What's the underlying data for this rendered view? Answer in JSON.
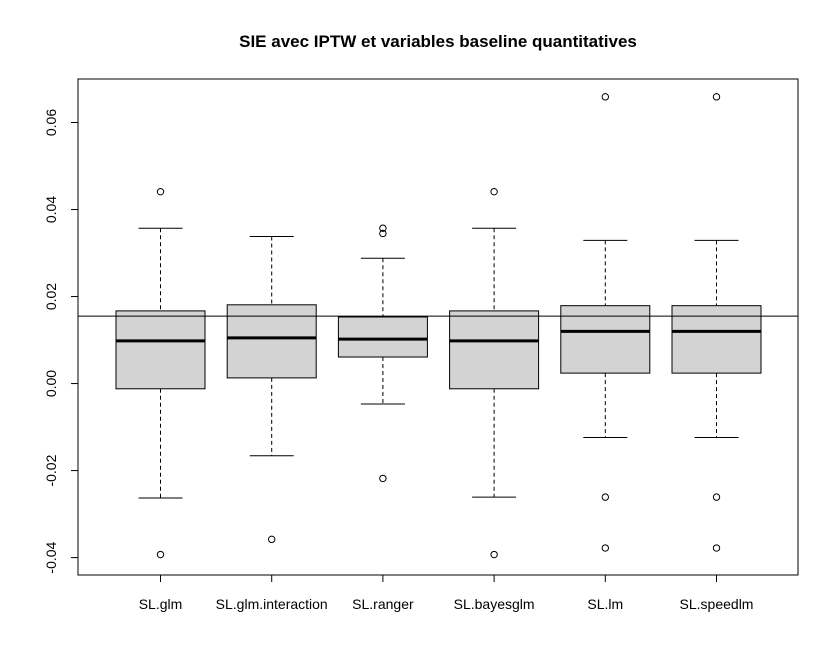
{
  "chart_data": {
    "type": "boxplot",
    "title": "SIE avec IPTW et variables baseline quantitatives",
    "xlabel": "",
    "ylabel": "",
    "ylim": [
      -0.044,
      0.07
    ],
    "yticks": [
      "-0.04",
      "-0.02",
      "0.00",
      "0.02",
      "0.04",
      "0.06"
    ],
    "ytick_values": [
      -0.04,
      -0.02,
      0.0,
      0.02,
      0.04,
      0.06
    ],
    "reference_line": 0.0155,
    "box_fill": "#d3d3d3",
    "categories": [
      "SL.glm",
      "SL.glm.interaction",
      "SL.ranger",
      "SL.bayesglm",
      "SL.lm",
      "SL.speedlm"
    ],
    "boxes": [
      {
        "name": "SL.glm",
        "whisker_low": -0.0263,
        "q1": -0.0012,
        "median": 0.0098,
        "q3": 0.0167,
        "whisker_high": 0.0357,
        "outliers": [
          0.0441,
          -0.0393
        ]
      },
      {
        "name": "SL.glm.interaction",
        "whisker_low": -0.0166,
        "q1": 0.0013,
        "median": 0.0105,
        "q3": 0.0181,
        "whisker_high": 0.0338,
        "outliers": [
          -0.0358
        ]
      },
      {
        "name": "SL.ranger",
        "whisker_low": -0.0047,
        "q1": 0.0061,
        "median": 0.0102,
        "q3": 0.0153,
        "whisker_high": 0.0288,
        "outliers": [
          0.0357,
          0.0345,
          -0.0218
        ]
      },
      {
        "name": "SL.bayesglm",
        "whisker_low": -0.0261,
        "q1": -0.0012,
        "median": 0.0098,
        "q3": 0.0167,
        "whisker_high": 0.0357,
        "outliers": [
          0.0441,
          -0.0393
        ]
      },
      {
        "name": "SL.lm",
        "whisker_low": -0.0124,
        "q1": 0.0024,
        "median": 0.012,
        "q3": 0.0179,
        "whisker_high": 0.0329,
        "outliers": [
          0.0659,
          -0.0261,
          -0.0378
        ]
      },
      {
        "name": "SL.speedlm",
        "whisker_low": -0.0124,
        "q1": 0.0024,
        "median": 0.012,
        "q3": 0.0179,
        "whisker_high": 0.0329,
        "outliers": [
          0.0659,
          -0.0261,
          -0.0378
        ]
      }
    ]
  }
}
